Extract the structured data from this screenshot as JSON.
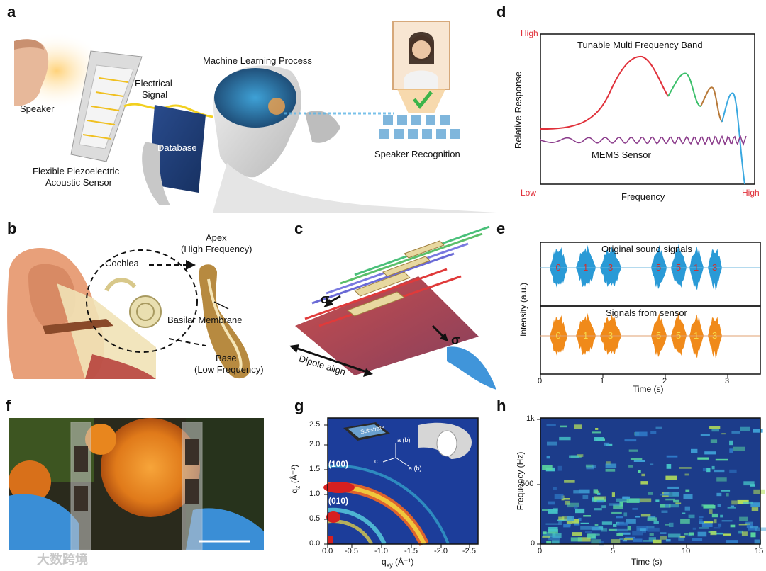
{
  "panels": {
    "a": {
      "label": "a",
      "speaker": "Speaker",
      "electrical_signal_1": "Electrical",
      "electrical_signal_2": "Signal",
      "database": "Database",
      "flexible_1": "Flexible Piezoelectric",
      "flexible_2": "Acoustic Sensor",
      "ml_process": "Machine Learning Process",
      "speaker_recognition": "Speaker Recognition"
    },
    "b": {
      "label": "b",
      "cochlea": "Cochlea",
      "apex_1": "Apex",
      "apex_2": "(High Frequency)",
      "basilar": "Basilar Membrane",
      "base_1": "Base",
      "base_2": "(Low Frequency)"
    },
    "c": {
      "label": "c",
      "sigma_left": "σ",
      "sigma_right": "σ",
      "dipole": "Dipole align"
    },
    "d": {
      "label": "d",
      "high_y": "High",
      "low": "Low",
      "high_x": "High",
      "ylabel": "Relative Response",
      "xlabel": "Frequency",
      "tunable": "Tunable Multi Frequency Band",
      "mems": "MEMS Sensor",
      "colors": {
        "red": "#e0303a",
        "green": "#3bbf6a",
        "blue": "#3aa8e0",
        "purple": "#8a3a8a"
      }
    },
    "e": {
      "label": "e",
      "original": "Original sound signals",
      "sensor": "Signals from sensor",
      "ylabel": "Intensity (a.u.)",
      "xlabel": "Time (s)",
      "xticks": [
        "0",
        "1",
        "2",
        "3"
      ],
      "digits_top": [
        "0",
        "1",
        "3",
        "5",
        "5",
        "1",
        "3"
      ],
      "digits_bottom": [
        "0",
        "1",
        "3",
        "5",
        "5",
        "1",
        "3"
      ]
    },
    "f": {
      "label": "f"
    },
    "g": {
      "label": "g",
      "ylabel": "q",
      "ylabel_sub": "z",
      "ylabel_unit": " (Å⁻¹)",
      "xlabel": "q",
      "xlabel_sub": "xy",
      "xlabel_unit": " (Å⁻¹)",
      "yticks": [
        "0.0",
        "0.5",
        "1.0",
        "1.5",
        "2.0",
        "2.5"
      ],
      "xticks": [
        "0.0",
        "-0.5",
        "-1.0",
        "-1.5",
        "-2.0",
        "-2.5"
      ],
      "peak_100": "(100)",
      "peak_010": "(010)",
      "substrate": "Substrate",
      "ab_top": "a (b)",
      "ab_right": "a (b)",
      "c_axis": "c"
    },
    "h": {
      "label": "h",
      "ylabel": "Frequency (Hz)",
      "xlabel": "Time (s)",
      "yticks": [
        "0",
        "500",
        "1k"
      ],
      "xticks": [
        "0",
        "5",
        "10",
        "15"
      ]
    }
  },
  "watermark": "大数跨境"
}
